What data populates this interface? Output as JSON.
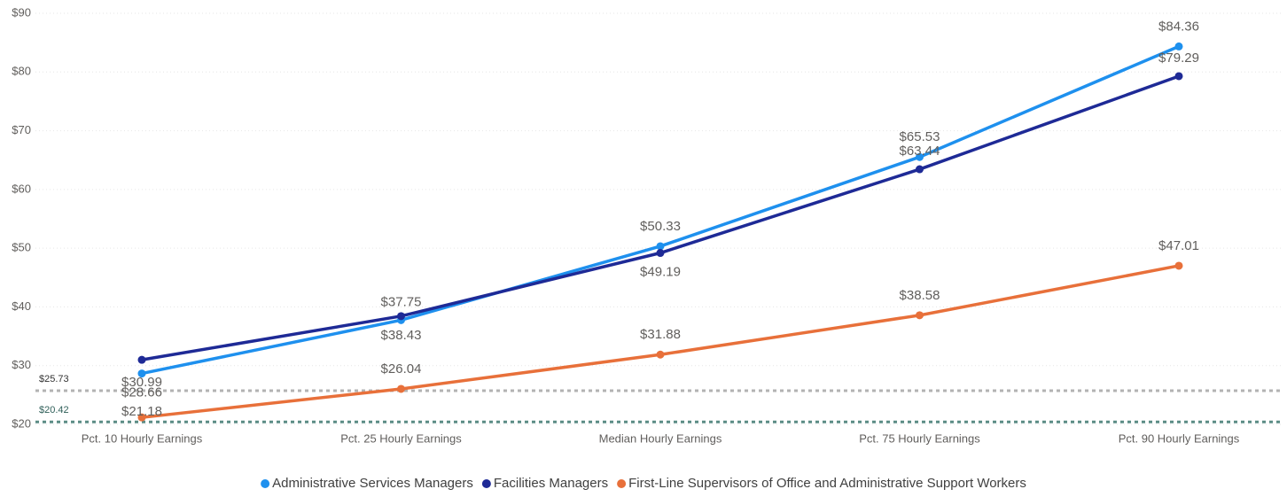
{
  "chart_data": {
    "type": "line",
    "categories": [
      "Pct. 10 Hourly Earnings",
      "Pct. 25 Hourly Earnings",
      "Median Hourly Earnings",
      "Pct. 75 Hourly Earnings",
      "Pct. 90 Hourly Earnings"
    ],
    "series": [
      {
        "name": "Administrative Services Managers",
        "color": "#1e90ee",
        "values": [
          28.66,
          37.75,
          50.33,
          65.53,
          84.36
        ],
        "value_labels": [
          "$28.66",
          "$37.75",
          "$50.33",
          "$65.53",
          "$84.36"
        ]
      },
      {
        "name": "Facilities Managers",
        "color": "#1e2a96",
        "values": [
          30.99,
          38.43,
          49.19,
          63.44,
          79.29
        ],
        "value_labels": [
          "$30.99",
          "$38.43",
          "$49.19",
          "$63.44",
          "$79.29"
        ]
      },
      {
        "name": "First-Line Supervisors of Office and Administrative Support Workers",
        "color": "#e8703a",
        "values": [
          21.18,
          26.04,
          31.88,
          38.58,
          47.01
        ],
        "value_labels": [
          "$21.18",
          "$26.04",
          "$31.88",
          "$38.58",
          "$47.01"
        ]
      }
    ],
    "reference_lines": [
      {
        "value": 25.73,
        "label": "$25.73",
        "color": "#b3b3b3"
      },
      {
        "value": 20.42,
        "label": "$20.42",
        "color": "#5b8c85"
      }
    ],
    "ylim": [
      20,
      90
    ],
    "yticks": [
      {
        "value": 20,
        "label": "$20"
      },
      {
        "value": 30,
        "label": "$30"
      },
      {
        "value": 40,
        "label": "$40"
      },
      {
        "value": 50,
        "label": "$50"
      },
      {
        "value": 60,
        "label": "$60"
      },
      {
        "value": 70,
        "label": "$70"
      },
      {
        "value": 80,
        "label": "$80"
      },
      {
        "value": 90,
        "label": "$90"
      }
    ],
    "grid": true,
    "legend": "bottom"
  }
}
